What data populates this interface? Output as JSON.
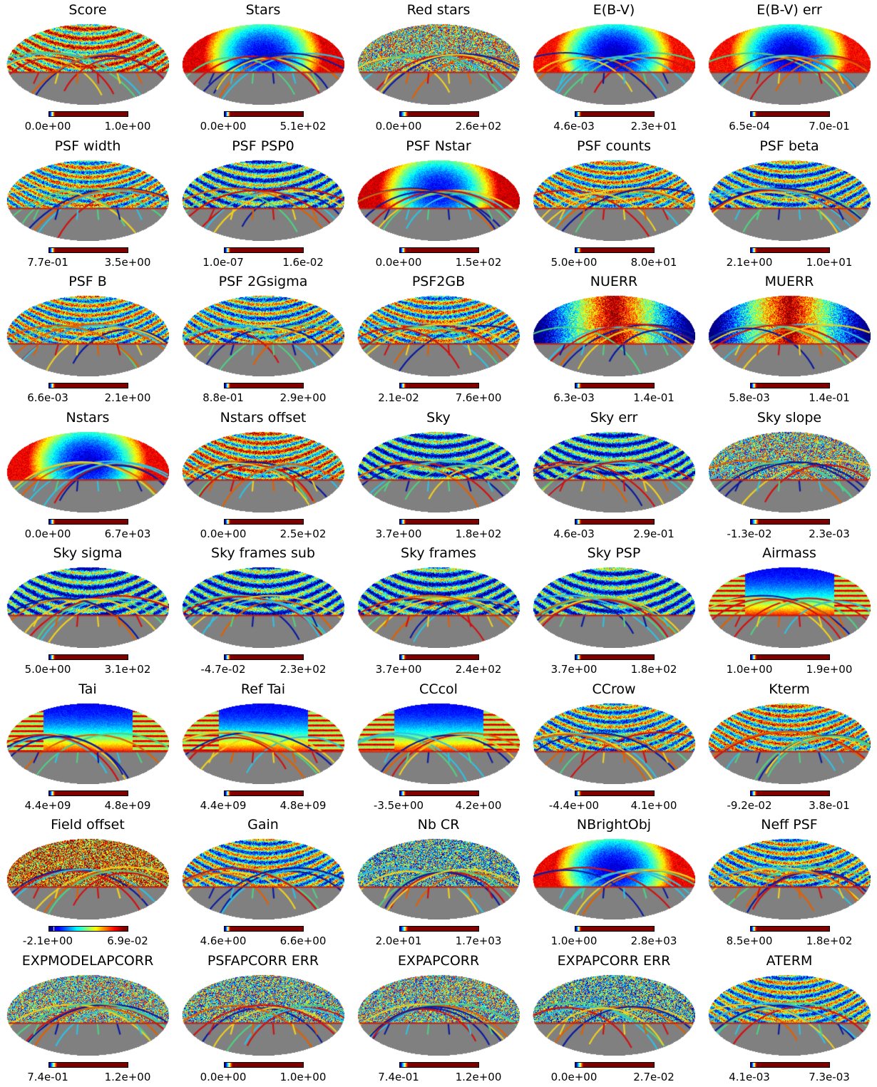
{
  "chart_data": {
    "type": "heatmap",
    "projection": "mollweide",
    "colormap": "jet",
    "masked_color": "#808080",
    "layout": {
      "columns": 5,
      "rows": 8
    },
    "panels": [
      {
        "title": "Score",
        "cmin": "0.0e+00",
        "cmax": "1.0e+00",
        "pattern": "stripes",
        "bias": 0.65
      },
      {
        "title": "Stars",
        "cmin": "0.0e+00",
        "cmax": "5.1e+02",
        "pattern": "blob",
        "bias": 0.3
      },
      {
        "title": "Red stars",
        "cmin": "0.0e+00",
        "cmax": "2.6e+02",
        "pattern": "noise",
        "bias": 0.55
      },
      {
        "title": "E(B-V)",
        "cmin": "4.6e-03",
        "cmax": "2.3e+01",
        "pattern": "blob",
        "bias": 0.2
      },
      {
        "title": "E(B-V) err",
        "cmin": "6.5e-04",
        "cmax": "7.0e-01",
        "pattern": "blob",
        "bias": 0.2
      },
      {
        "title": "PSF width",
        "cmin": "7.7e-01",
        "cmax": "3.5e+00",
        "pattern": "stripes",
        "bias": 0.5
      },
      {
        "title": "PSF PSP0",
        "cmin": "1.0e-07",
        "cmax": "1.6e-02",
        "pattern": "stripes",
        "bias": 0.35
      },
      {
        "title": "PSF Nstar",
        "cmin": "0.0e+00",
        "cmax": "1.5e+02",
        "pattern": "blob",
        "bias": 0.35
      },
      {
        "title": "PSF counts",
        "cmin": "5.0e+00",
        "cmax": "8.0e+01",
        "pattern": "stripes",
        "bias": 0.5
      },
      {
        "title": "PSF beta",
        "cmin": "2.1e+00",
        "cmax": "1.0e+01",
        "pattern": "stripes",
        "bias": 0.4
      },
      {
        "title": "PSF B",
        "cmin": "6.6e-03",
        "cmax": "2.1e+00",
        "pattern": "stripes",
        "bias": 0.5
      },
      {
        "title": "PSF 2Gsigma",
        "cmin": "8.8e-01",
        "cmax": "2.9e+00",
        "pattern": "stripes",
        "bias": 0.45
      },
      {
        "title": "PSF2GB",
        "cmin": "2.1e-02",
        "cmax": "7.6e+00",
        "pattern": "stripes",
        "bias": 0.5
      },
      {
        "title": "NUERR",
        "cmin": "6.3e-03",
        "cmax": "1.4e-01",
        "pattern": "vertical",
        "bias": 0.6
      },
      {
        "title": "MUERR",
        "cmin": "5.8e-03",
        "cmax": "1.4e-01",
        "pattern": "vertical",
        "bias": 0.6
      },
      {
        "title": "Nstars",
        "cmin": "0.0e+00",
        "cmax": "6.7e+03",
        "pattern": "blob",
        "bias": 0.25
      },
      {
        "title": "Nstars offset",
        "cmin": "0.0e+00",
        "cmax": "2.5e+02",
        "pattern": "stripes",
        "bias": 0.6
      },
      {
        "title": "Sky",
        "cmin": "3.7e+00",
        "cmax": "1.8e+02",
        "pattern": "stripes",
        "bias": 0.3
      },
      {
        "title": "Sky err",
        "cmin": "4.6e-03",
        "cmax": "2.9e-01",
        "pattern": "stripes",
        "bias": 0.3
      },
      {
        "title": "Sky slope",
        "cmin": "-1.3e-02",
        "cmax": "2.3e-03",
        "pattern": "noise",
        "bias": 0.5
      },
      {
        "title": "Sky sigma",
        "cmin": "5.0e+00",
        "cmax": "3.1e+02",
        "pattern": "stripes",
        "bias": 0.3
      },
      {
        "title": "Sky frames sub",
        "cmin": "-4.7e-02",
        "cmax": "2.3e+02",
        "pattern": "stripes",
        "bias": 0.3
      },
      {
        "title": "Sky frames",
        "cmin": "3.7e+00",
        "cmax": "2.4e+02",
        "pattern": "stripes",
        "bias": 0.3
      },
      {
        "title": "Sky PSP",
        "cmin": "3.7e+00",
        "cmax": "1.8e+02",
        "pattern": "stripes",
        "bias": 0.3
      },
      {
        "title": "Airmass",
        "cmin": "1.0e+00",
        "cmax": "1.9e+00",
        "pattern": "gradient",
        "bias": 0.3
      },
      {
        "title": "Tai",
        "cmin": "4.4e+09",
        "cmax": "4.8e+09",
        "pattern": "gradient",
        "bias": 0.2
      },
      {
        "title": "Ref Tai",
        "cmin": "4.4e+09",
        "cmax": "4.8e+09",
        "pattern": "gradient",
        "bias": 0.2
      },
      {
        "title": "CCcol",
        "cmin": "-3.5e+00",
        "cmax": "4.2e+00",
        "pattern": "gradient",
        "bias": 0.3
      },
      {
        "title": "CCrow",
        "cmin": "-4.4e+00",
        "cmax": "4.1e+00",
        "pattern": "stripes",
        "bias": 0.45
      },
      {
        "title": "Kterm",
        "cmin": "-9.2e-02",
        "cmax": "3.8e-01",
        "pattern": "stripes",
        "bias": 0.55
      },
      {
        "title": "Field offset",
        "cmin": "-2.1e+00",
        "cmax": "6.9e-02",
        "pattern": "noise",
        "bias": 0.78
      },
      {
        "title": "Gain",
        "cmin": "4.6e+00",
        "cmax": "6.6e+00",
        "pattern": "stripes",
        "bias": 0.45
      },
      {
        "title": "Nb CR",
        "cmin": "2.0e+01",
        "cmax": "1.7e+03",
        "pattern": "noise",
        "bias": 0.4
      },
      {
        "title": "NBrightObj",
        "cmin": "1.0e+00",
        "cmax": "2.8e+03",
        "pattern": "blob",
        "bias": 0.25
      },
      {
        "title": "Neff PSF",
        "cmin": "8.5e+00",
        "cmax": "1.8e+02",
        "pattern": "stripes",
        "bias": 0.45
      },
      {
        "title": "EXPMODELAPCORR",
        "cmin": "7.4e-01",
        "cmax": "1.2e+00",
        "pattern": "noise",
        "bias": 0.5
      },
      {
        "title": "PSFAPCORR ERR",
        "cmin": "0.0e+00",
        "cmax": "1.0e+00",
        "pattern": "noise",
        "bias": 0.45
      },
      {
        "title": "EXPAPCORR",
        "cmin": "7.4e-01",
        "cmax": "1.2e+00",
        "pattern": "noise",
        "bias": 0.5
      },
      {
        "title": "EXPAPCORR ERR",
        "cmin": "0.0e+00",
        "cmax": "2.7e-02",
        "pattern": "noise",
        "bias": 0.4
      },
      {
        "title": "ATERM",
        "cmin": "4.1e-03",
        "cmax": "7.3e-03",
        "pattern": "stripes",
        "bias": 0.45
      }
    ]
  }
}
